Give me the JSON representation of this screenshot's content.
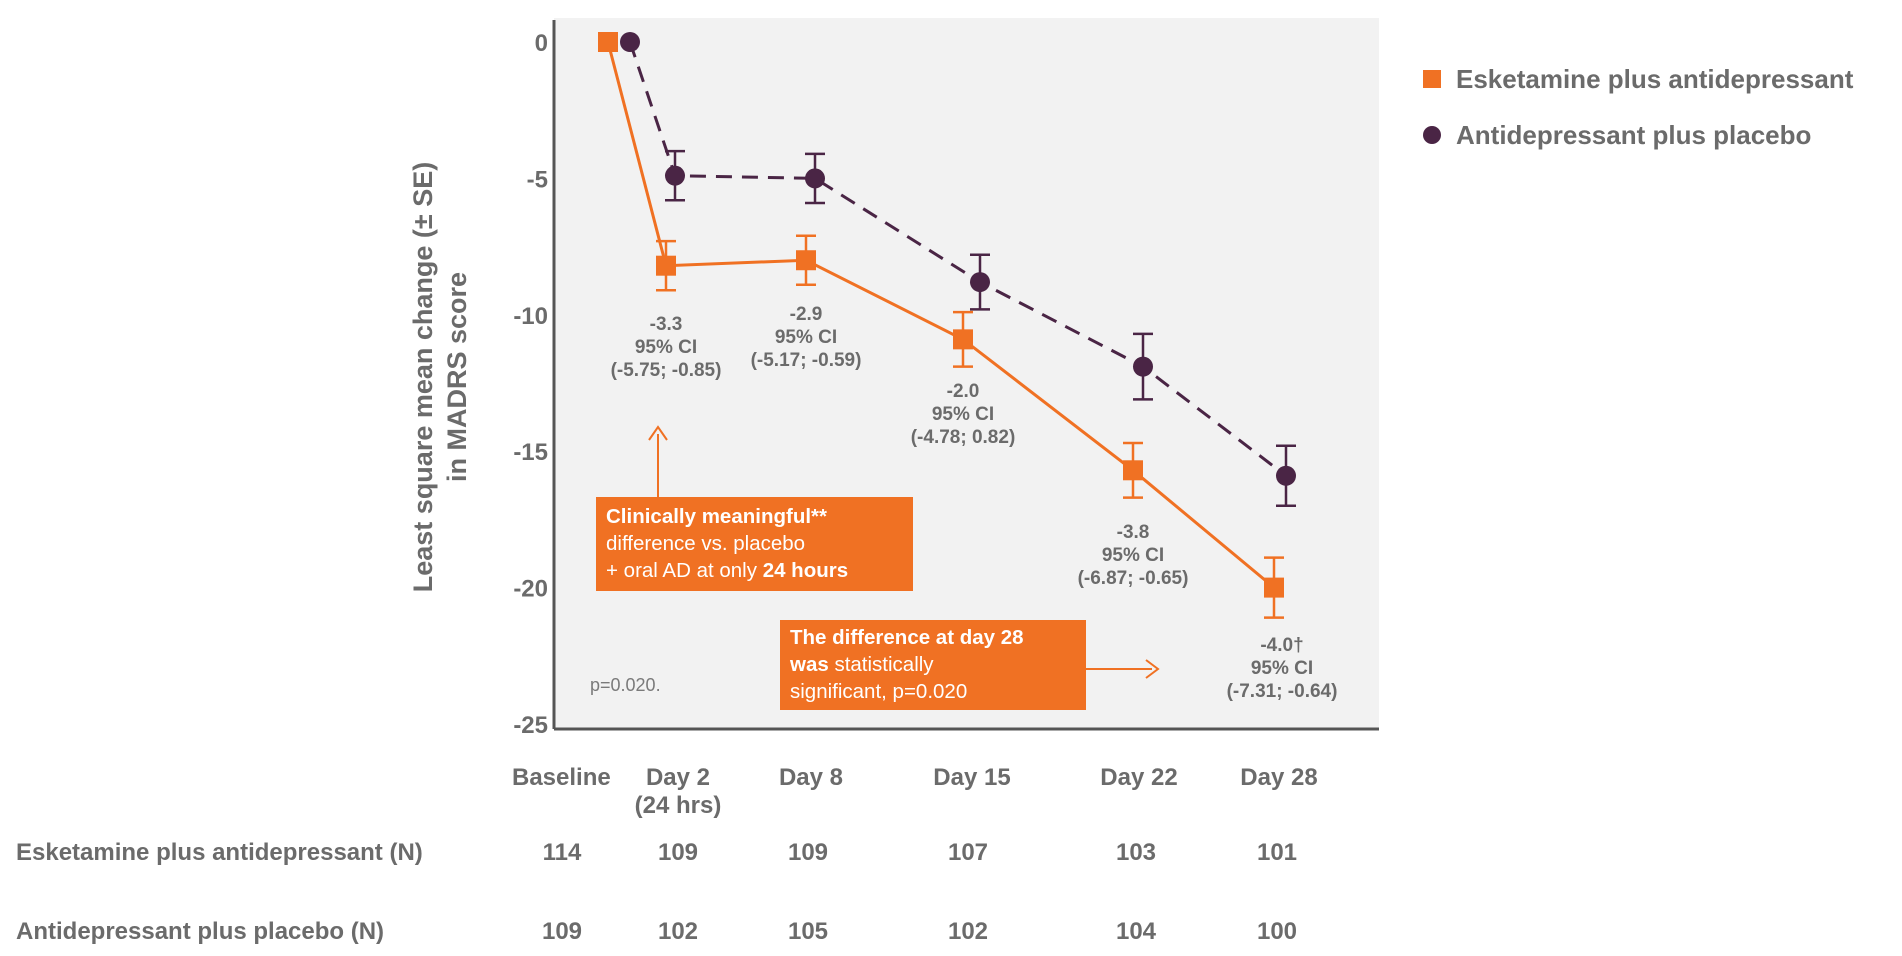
{
  "chart_data": {
    "type": "line",
    "ylabel_line1": "Least square mean change (± SE)",
    "ylabel_line2": "in MADRS score",
    "ylim": [
      -25,
      0
    ],
    "yticks": [
      0,
      -5,
      -10,
      -15,
      -20,
      -25
    ],
    "ytick_labels": [
      "0",
      "-5",
      "-10",
      "-15",
      "-20",
      "-25"
    ],
    "categories": [
      "Baseline",
      "Day 2\n(24 hrs)",
      "Day 8",
      "Day 15",
      "Day 22",
      "Day 28"
    ],
    "category_positions": [
      0,
      1,
      2,
      3,
      4,
      5
    ],
    "grid": false,
    "legend_position": "top-right",
    "series": [
      {
        "name": "Esketamine plus antidepressant",
        "marker": "square",
        "line_style": "solid",
        "color": "#f07123",
        "x": [
          0,
          1,
          2,
          3,
          4,
          5
        ],
        "values": [
          0,
          -8.2,
          -8.0,
          -10.9,
          -15.7,
          -20.0
        ],
        "se": [
          0,
          0.9,
          0.9,
          1.0,
          1.0,
          1.1
        ]
      },
      {
        "name": "Antidepressant plus placebo",
        "marker": "circle",
        "line_style": "dashed",
        "color": "#4a2545",
        "x": [
          0,
          1,
          2,
          3,
          4,
          5
        ],
        "values": [
          0,
          -4.9,
          -5.0,
          -8.8,
          -11.9,
          -15.9
        ],
        "se": [
          0,
          0.9,
          0.9,
          1.0,
          1.2,
          1.1
        ]
      }
    ],
    "data_labels": [
      {
        "day": "Day 2",
        "diff": "-3.3",
        "ci_label": "95% CI",
        "ci": "(-5.75; -0.85)"
      },
      {
        "day": "Day 8",
        "diff": "-2.9",
        "ci_label": "95% CI",
        "ci": "(-5.17; -0.59)"
      },
      {
        "day": "Day 15",
        "diff": "-2.0",
        "ci_label": "95% CI",
        "ci": "(-4.78; 0.82)"
      },
      {
        "day": "Day 22",
        "diff": "-3.8",
        "ci_label": "95% CI",
        "ci": "(-6.87; -0.65)"
      },
      {
        "day": "Day 28",
        "diff": "-4.0†",
        "ci_label": "95% CI",
        "ci": "(-7.31; -0.64)"
      }
    ],
    "annotations": {
      "pvalue_note": "p=0.020.",
      "callout_24h": {
        "line1": "Clinically meaningful**",
        "line2": "difference vs. placebo",
        "line3_normal": "+ oral AD at only ",
        "line3_bold": "24 hours"
      },
      "callout_day28": {
        "line1": "The difference at day 28",
        "line2_bold": "was",
        "line2_normal": " statistically",
        "line3": "significant, p=0.020"
      }
    },
    "n_table": {
      "rows": [
        {
          "label": "Esketamine plus antidepressant (N)",
          "values": [
            "114",
            "109",
            "109",
            "107",
            "103",
            "101"
          ]
        },
        {
          "label": "Antidepressant plus placebo (N)",
          "values": [
            "109",
            "102",
            "105",
            "102",
            "104",
            "100"
          ]
        }
      ]
    },
    "colors": {
      "plot_bg": "#f2f2f2",
      "axis": "#555555",
      "text": "#6b6b6b",
      "callout_bg": "#f07123"
    }
  }
}
